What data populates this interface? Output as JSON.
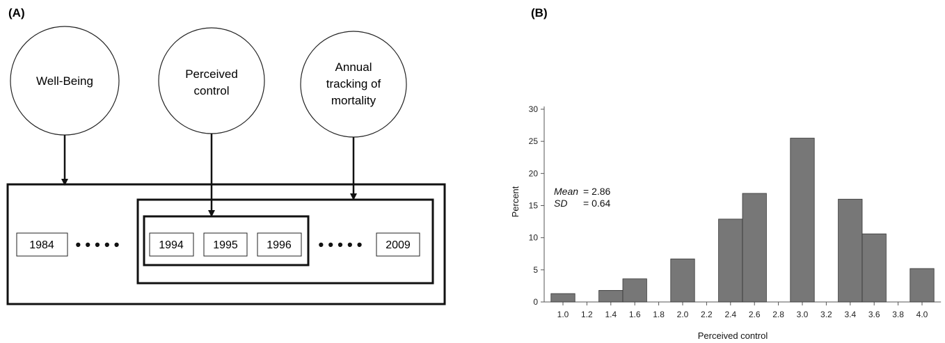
{
  "panel_a": {
    "label": "(A)",
    "nodes": [
      {
        "lines": [
          "Well-Being"
        ]
      },
      {
        "lines": [
          "Perceived",
          "control"
        ]
      },
      {
        "lines": [
          "Annual",
          "tracking of",
          "mortality"
        ]
      }
    ],
    "years": [
      "1984",
      "1994",
      "1995",
      "1996",
      "2009"
    ],
    "ellipsis": "• • • • •"
  },
  "panel_b": {
    "label": "(B)",
    "stats": {
      "mean_label": "Mean",
      "mean_value": "= 2.86",
      "sd_label": "SD",
      "sd_value": "= 0.64"
    }
  },
  "chart_data": {
    "type": "bar",
    "xlabel": "Perceived control",
    "ylabel": "Percent",
    "ylim": [
      0,
      30
    ],
    "yticks": [
      0,
      5,
      10,
      15,
      20,
      25,
      30
    ],
    "xticks": [
      "1.0",
      "1.2",
      "1.4",
      "1.6",
      "1.8",
      "2.0",
      "2.2",
      "2.4",
      "2.6",
      "2.8",
      "3.0",
      "3.2",
      "3.4",
      "3.6",
      "3.8",
      "4.0"
    ],
    "bins": [
      {
        "x": 1.0,
        "value": 1.3
      },
      {
        "x": 1.4,
        "value": 1.8
      },
      {
        "x": 1.6,
        "value": 3.6
      },
      {
        "x": 2.0,
        "value": 6.7
      },
      {
        "x": 2.4,
        "value": 12.9
      },
      {
        "x": 2.6,
        "value": 16.9
      },
      {
        "x": 3.0,
        "value": 25.5
      },
      {
        "x": 3.4,
        "value": 16.0
      },
      {
        "x": 3.6,
        "value": 10.6
      },
      {
        "x": 4.0,
        "value": 5.2
      }
    ],
    "bar_color": "#777777",
    "grid": false
  }
}
